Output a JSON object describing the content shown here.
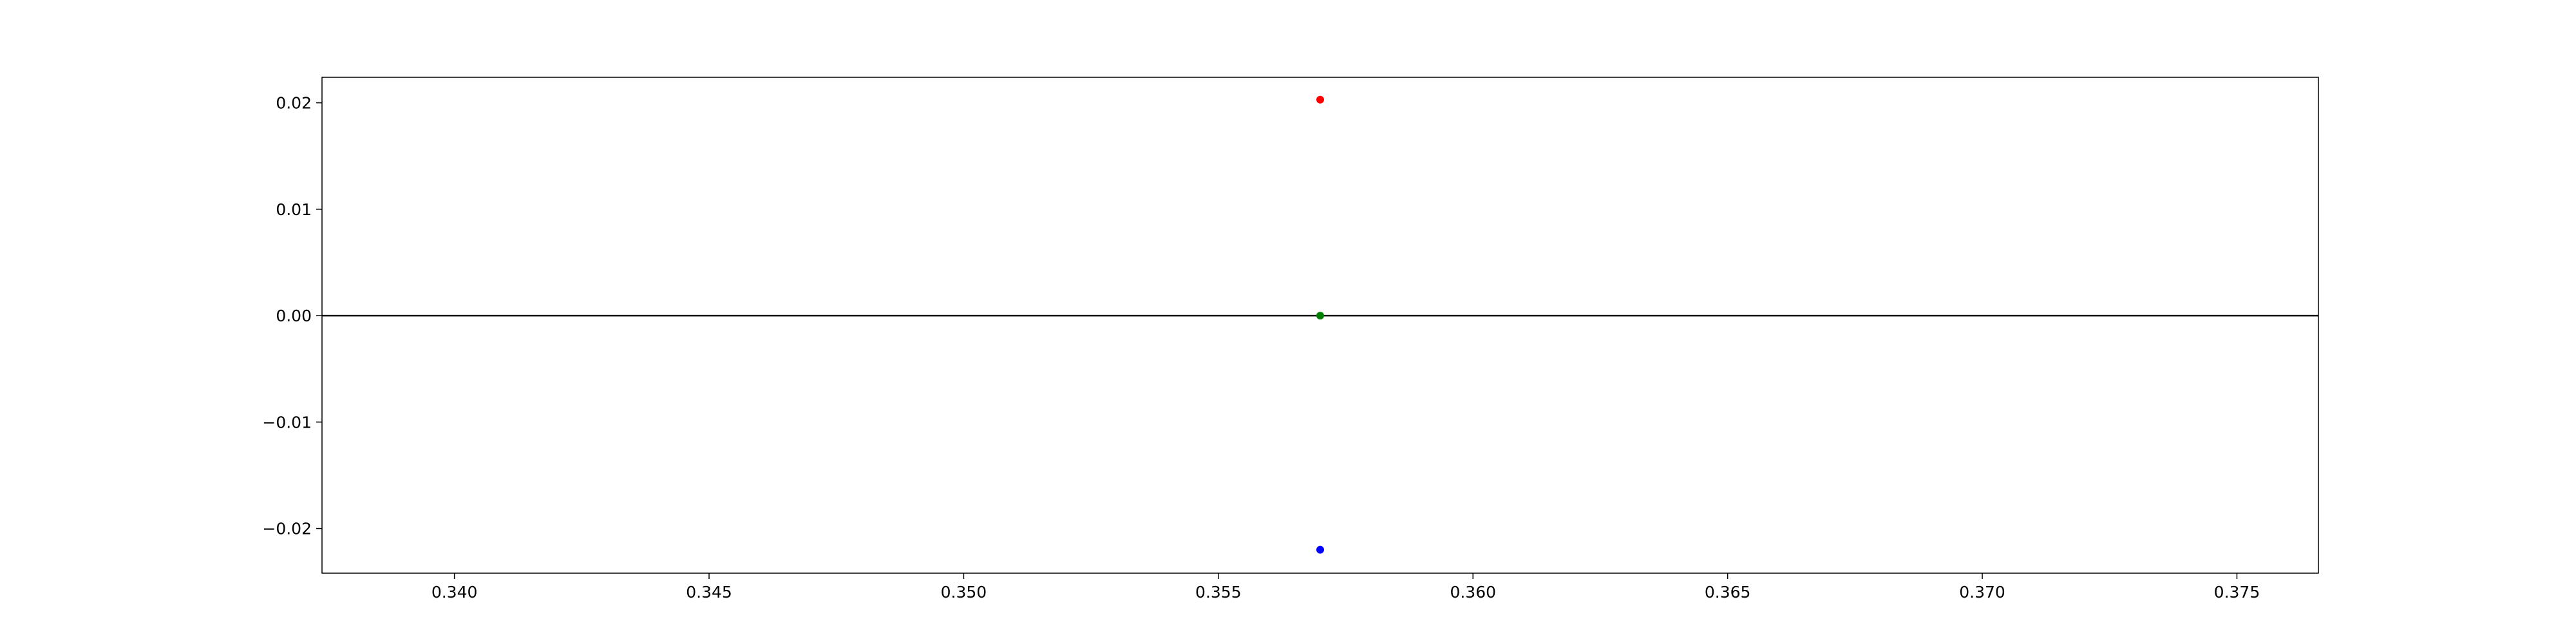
{
  "chart_data": {
    "type": "scatter",
    "title": "",
    "xlabel": "",
    "ylabel": "",
    "xlim": [
      0.3374,
      0.3766
    ],
    "ylim": [
      -0.0242,
      0.0224
    ],
    "grid": false,
    "legend": "none",
    "x_ticks": [
      {
        "value": 0.34,
        "label": "0.340"
      },
      {
        "value": 0.345,
        "label": "0.345"
      },
      {
        "value": 0.35,
        "label": "0.350"
      },
      {
        "value": 0.355,
        "label": "0.355"
      },
      {
        "value": 0.36,
        "label": "0.360"
      },
      {
        "value": 0.365,
        "label": "0.365"
      },
      {
        "value": 0.37,
        "label": "0.370"
      },
      {
        "value": 0.375,
        "label": "0.375"
      }
    ],
    "y_ticks": [
      {
        "value": 0.02,
        "label": "0.02"
      },
      {
        "value": 0.01,
        "label": "0.01"
      },
      {
        "value": 0.0,
        "label": "0.00"
      },
      {
        "value": -0.01,
        "label": "−0.01"
      },
      {
        "value": -0.02,
        "label": "−0.02"
      }
    ],
    "reference_lines": [
      {
        "orientation": "horizontal",
        "y": 0.0,
        "color": "#000000"
      }
    ],
    "points": [
      {
        "x": 0.357,
        "y": 0.0203,
        "color": "#ff0000"
      },
      {
        "x": 0.357,
        "y": 0.0,
        "color": "#008000"
      },
      {
        "x": 0.357,
        "y": -0.022,
        "color": "#0000ff"
      }
    ]
  }
}
